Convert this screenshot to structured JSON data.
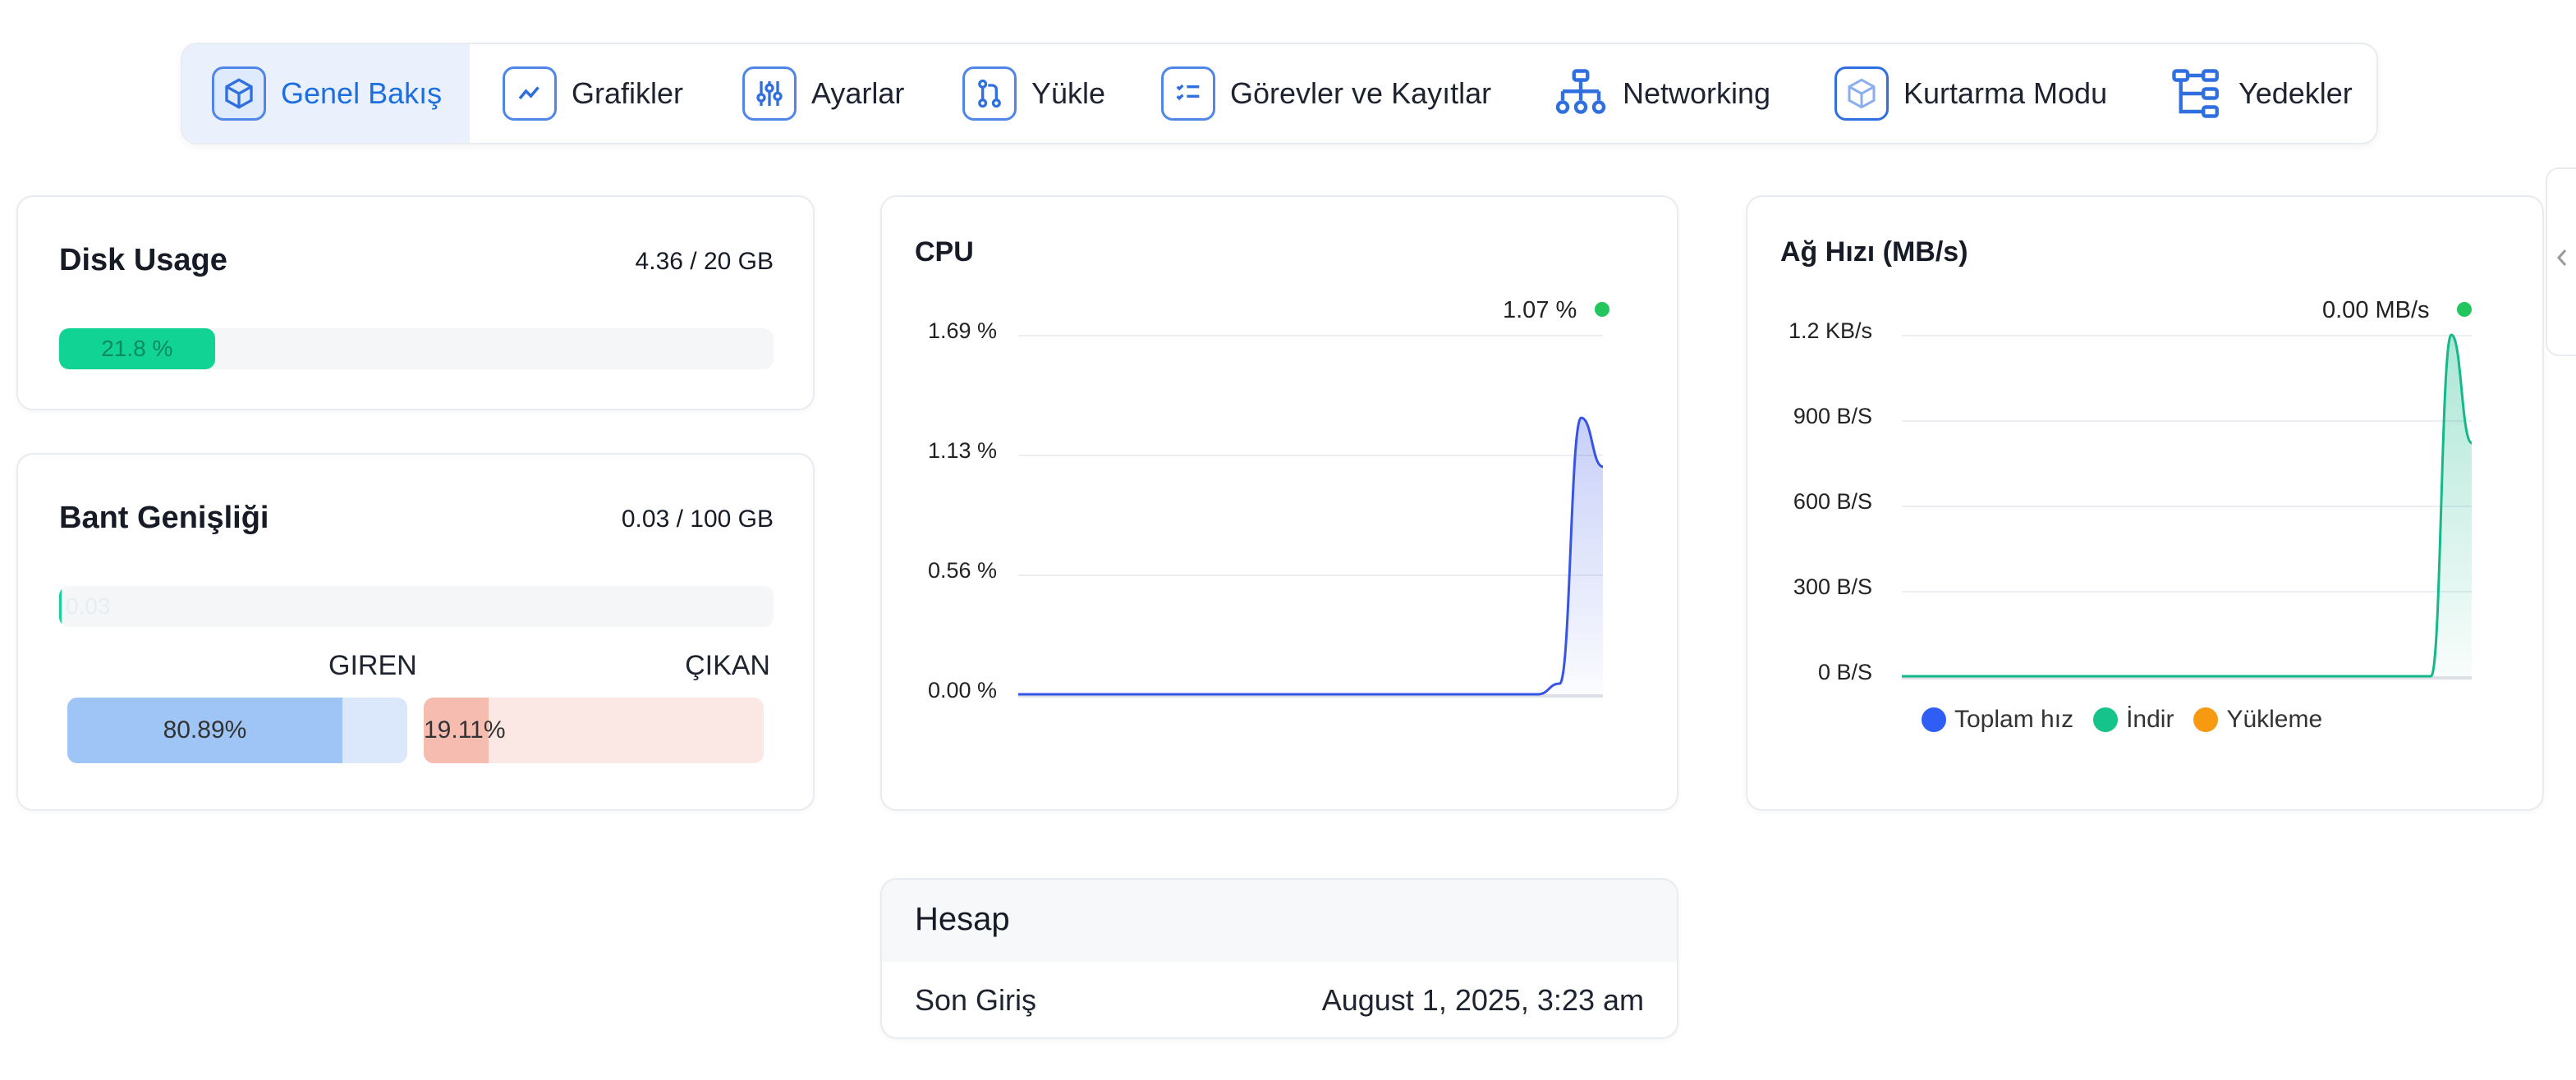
{
  "tabs": [
    {
      "label": "Genel Bakış",
      "icon": "cube-icon",
      "active": true
    },
    {
      "label": "Grafikler",
      "icon": "line-chart-icon"
    },
    {
      "label": "Ayarlar",
      "icon": "sliders-icon"
    },
    {
      "label": "Yükle",
      "icon": "git-branch-icon"
    },
    {
      "label": "Görevler ve Kayıtlar",
      "icon": "checklist-icon"
    },
    {
      "label": "Networking",
      "icon": "network-icon"
    },
    {
      "label": "Kurtarma Modu",
      "icon": "cube-outline-icon"
    },
    {
      "label": "Yedekler",
      "icon": "tree-icon"
    }
  ],
  "disk": {
    "title": "Disk Usage",
    "value": "4.36 / 20 GB",
    "percent_label": "21.8 %",
    "fraction": 0.218,
    "color": "#10d394"
  },
  "bandwidth": {
    "title": "Bant Genişliği",
    "value": "0.03 / 100 GB",
    "bar_label": "0.03",
    "fraction": 0.0003,
    "in_label": "GIREN",
    "out_label": "ÇIKAN",
    "in_percent": "80.89%",
    "out_percent": "19.11%",
    "in_fraction": 0.8089,
    "out_fraction": 0.1911
  },
  "cpu": {
    "title": "CPU",
    "current": "1.07 %",
    "ticks": [
      "1.69 %",
      "1.13 %",
      "0.56 %",
      "0.00 %"
    ]
  },
  "network": {
    "title": "Ağ Hızı (MB/s)",
    "current": "0.00 MB/s",
    "ticks": [
      "1.2 KB/s",
      "900 B/S",
      "600 B/S",
      "300 B/S",
      "0 B/S"
    ],
    "legend": [
      {
        "label": "Toplam hız",
        "color": "#2f5ef5"
      },
      {
        "label": "İndir",
        "color": "#14c48a"
      },
      {
        "label": "Yükleme",
        "color": "#f79a12"
      }
    ]
  },
  "chart_data": [
    {
      "type": "area",
      "title": "CPU",
      "ylabel": "",
      "ylim": [
        0,
        1.69
      ],
      "yticks": [
        "0.00 %",
        "0.56 %",
        "1.13 %",
        "1.69 %"
      ],
      "series": [
        {
          "values": [
            0,
            0,
            0,
            0,
            0,
            0,
            0,
            0,
            0,
            0,
            0,
            0,
            0,
            0,
            0,
            0,
            0,
            0,
            0,
            0,
            0,
            0,
            0,
            0,
            0,
            0.05,
            1.3,
            1.07
          ],
          "color": "#3654e6"
        }
      ],
      "grid": true
    },
    {
      "type": "area",
      "title": "Ağ Hızı (MB/s)",
      "ylim": [
        0,
        1200
      ],
      "yticks": [
        "0 B/S",
        "300 B/S",
        "600 B/S",
        "900 B/S",
        "1.2 KB/s"
      ],
      "series": [
        {
          "name": "İndir",
          "values": [
            0,
            0,
            0,
            0,
            0,
            0,
            0,
            0,
            0,
            0,
            0,
            0,
            0,
            0,
            0,
            0,
            0,
            0,
            0,
            0,
            0,
            0,
            0,
            0,
            0,
            0,
            0,
            1200,
            820
          ],
          "color": "#14b88a"
        }
      ],
      "legend": "bottom",
      "grid": true
    }
  ],
  "account": {
    "title": "Hesap",
    "last_login_label": "Son Giriş",
    "last_login_value": "August 1, 2025, 3:23 am"
  }
}
